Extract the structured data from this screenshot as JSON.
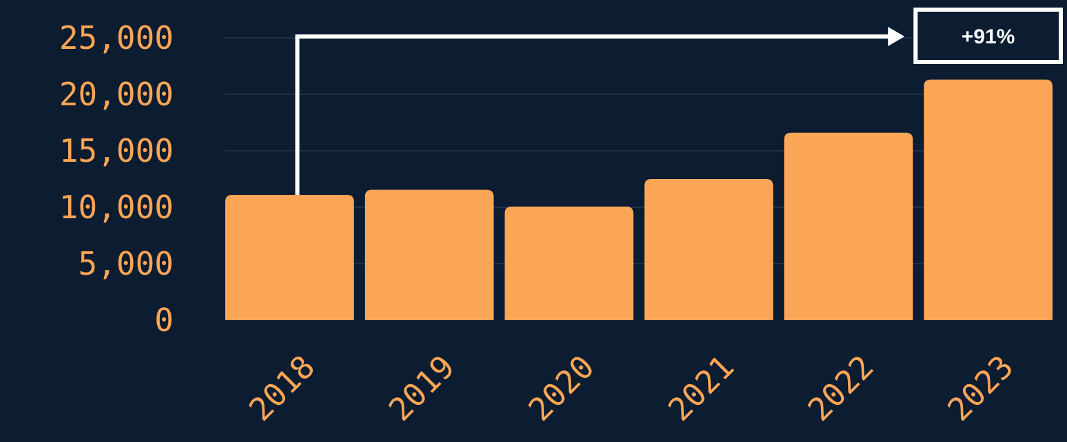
{
  "chart_data": {
    "type": "bar",
    "categories": [
      "2018",
      "2019",
      "2020",
      "2021",
      "2022",
      "2023"
    ],
    "values": [
      11100,
      11550,
      10050,
      12500,
      16600,
      21300
    ],
    "title": "",
    "xlabel": "",
    "ylabel": "",
    "ylim": [
      0,
      25000
    ],
    "yticks": [
      0,
      5000,
      10000,
      15000,
      20000,
      25000
    ],
    "ytick_labels": [
      "0",
      "5,000",
      "10,000",
      "15,000",
      "20,000",
      "25,000"
    ],
    "grid": true,
    "legend": "none",
    "annotation": {
      "text": "+91%",
      "from_category": "2018",
      "to_category": "2023"
    },
    "colors": {
      "background": "#0c1c31",
      "bar": "#fba556",
      "gridline": "#34455a",
      "text": "#fba556",
      "annotation": "#ffffff"
    }
  }
}
